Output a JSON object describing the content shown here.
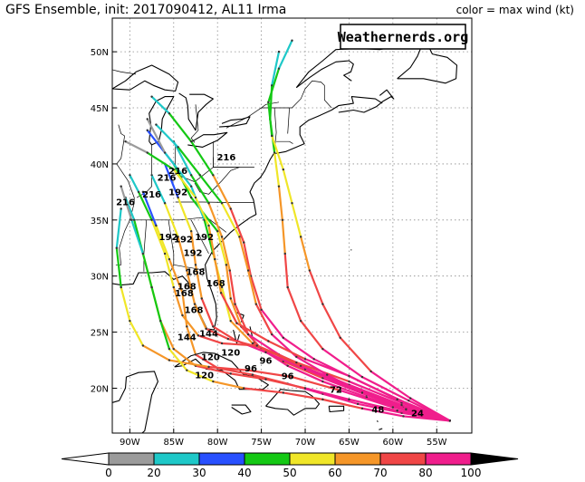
{
  "header": {
    "title": "GFS Ensemble, init: 2017090412, AL11 Irma",
    "legend_title": "color = max wind (kt)"
  },
  "watermark": "Weathernerds.org",
  "map": {
    "lon_range": [
      -92,
      -51
    ],
    "lat_range": [
      16,
      53
    ],
    "lon_ticks": [
      {
        "lon": -90,
        "label": "90W"
      },
      {
        "lon": -85,
        "label": "85W"
      },
      {
        "lon": -80,
        "label": "80W"
      },
      {
        "lon": -75,
        "label": "75W"
      },
      {
        "lon": -70,
        "label": "70W"
      },
      {
        "lon": -65,
        "label": "65W"
      },
      {
        "lon": -60,
        "label": "60W"
      },
      {
        "lon": -55,
        "label": "55W"
      }
    ],
    "lat_ticks": [
      {
        "lat": 20,
        "label": "20N"
      },
      {
        "lat": 25,
        "label": "25N"
      },
      {
        "lat": 30,
        "label": "30N"
      },
      {
        "lat": 35,
        "label": "35N"
      },
      {
        "lat": 40,
        "label": "40N"
      },
      {
        "lat": 45,
        "label": "45N"
      },
      {
        "lat": 50,
        "label": "50N"
      }
    ]
  },
  "colorbar": {
    "labels": [
      "0",
      "20",
      "30",
      "40",
      "50",
      "60",
      "70",
      "80",
      "100"
    ],
    "colors": [
      "#9b9b9b",
      "#1ec8c8",
      "#2850ff",
      "#14c814",
      "#f0e628",
      "#f59628",
      "#f04646",
      "#f01e8c"
    ]
  },
  "hour_labels": [
    {
      "text": "24",
      "lon": -57.2,
      "lat": 17.5
    },
    {
      "text": "48",
      "lon": -61.7,
      "lat": 17.8
    },
    {
      "text": "72",
      "lon": -66.5,
      "lat": 19.6
    },
    {
      "text": "96",
      "lon": -72.0,
      "lat": 20.8
    },
    {
      "text": "96",
      "lon": -74.5,
      "lat": 22.2
    },
    {
      "text": "96",
      "lon": -76.2,
      "lat": 21.5
    },
    {
      "text": "120",
      "lon": -81.5,
      "lat": 20.9
    },
    {
      "text": "120",
      "lon": -80.8,
      "lat": 22.5
    },
    {
      "text": "120",
      "lon": -78.5,
      "lat": 22.9
    },
    {
      "text": "144",
      "lon": -83.5,
      "lat": 24.3
    },
    {
      "text": "144",
      "lon": -81.0,
      "lat": 24.6
    },
    {
      "text": "168",
      "lon": -82.7,
      "lat": 26.7
    },
    {
      "text": "168",
      "lon": -83.8,
      "lat": 28.2
    },
    {
      "text": "168",
      "lon": -83.5,
      "lat": 28.8
    },
    {
      "text": "168",
      "lon": -80.2,
      "lat": 29.1
    },
    {
      "text": "168",
      "lon": -82.5,
      "lat": 30.1
    },
    {
      "text": "192",
      "lon": -85.6,
      "lat": 33.2
    },
    {
      "text": "192",
      "lon": -83.9,
      "lat": 33.0
    },
    {
      "text": "192",
      "lon": -82.8,
      "lat": 31.8
    },
    {
      "text": "192",
      "lon": -81.5,
      "lat": 33.2
    },
    {
      "text": "216",
      "lon": -90.5,
      "lat": 36.3
    },
    {
      "text": "216",
      "lon": -87.5,
      "lat": 37.0
    },
    {
      "text": "192",
      "lon": -84.5,
      "lat": 37.2
    },
    {
      "text": "216",
      "lon": -85.8,
      "lat": 38.5
    },
    {
      "text": "216",
      "lon": -84.5,
      "lat": 39.1
    },
    {
      "text": "216",
      "lon": -79.0,
      "lat": 40.3
    }
  ],
  "tracks": [
    {
      "colors": [
        "#f01e8c",
        "#f01e8c",
        "#f01e8c",
        "#f04646",
        "#f59628",
        "#f0e628",
        "#14c814",
        "#2850ff"
      ],
      "points": [
        [
          -53.5,
          17.1
        ],
        [
          -58,
          17.9
        ],
        [
          -63,
          19.2
        ],
        [
          -68,
          20.6
        ],
        [
          -72,
          22
        ],
        [
          -75,
          23.5
        ],
        [
          -77.3,
          25.5
        ],
        [
          -78.5,
          28
        ],
        [
          -79,
          31
        ],
        [
          -80,
          34
        ],
        [
          -83,
          37
        ],
        [
          -85,
          40
        ],
        [
          -88,
          43
        ]
      ]
    },
    {
      "colors": [
        "#f01e8c",
        "#f01e8c",
        "#f04646",
        "#f59628",
        "#f0e628",
        "#14c814",
        "#1ec8c8",
        "#9b9b9b"
      ],
      "points": [
        [
          -53.5,
          17.1
        ],
        [
          -58,
          18
        ],
        [
          -63,
          19.4
        ],
        [
          -68,
          20.9
        ],
        [
          -72.5,
          22.4
        ],
        [
          -76,
          24
        ],
        [
          -78.5,
          26
        ],
        [
          -79.5,
          29
        ],
        [
          -80.5,
          32
        ],
        [
          -81.5,
          35
        ],
        [
          -83,
          38
        ],
        [
          -86,
          41
        ],
        [
          -88,
          44
        ]
      ]
    },
    {
      "colors": [
        "#f01e8c",
        "#f01e8c",
        "#f01e8c",
        "#f04646",
        "#f04646",
        "#f59628",
        "#14c814",
        "#1ec8c8"
      ],
      "points": [
        [
          -53.5,
          17.1
        ],
        [
          -58.5,
          18.2
        ],
        [
          -64,
          19.8
        ],
        [
          -69,
          21.5
        ],
        [
          -73,
          23
        ],
        [
          -76.5,
          24.8
        ],
        [
          -78,
          27.5
        ],
        [
          -78.6,
          30.5
        ],
        [
          -79.5,
          33.5
        ],
        [
          -81,
          36.5
        ],
        [
          -83,
          39
        ],
        [
          -85,
          42
        ]
      ]
    },
    {
      "colors": [
        "#f01e8c",
        "#f01e8c",
        "#f01e8c",
        "#f04646",
        "#f04646",
        "#f59628",
        "#f0e628",
        "#2850ff"
      ],
      "points": [
        [
          -53.5,
          17.1
        ],
        [
          -58.8,
          18.4
        ],
        [
          -64.5,
          20
        ],
        [
          -70,
          21.7
        ],
        [
          -74.5,
          23.2
        ],
        [
          -78,
          24.3
        ],
        [
          -80.5,
          25.5
        ],
        [
          -81.8,
          28
        ],
        [
          -82.5,
          31
        ],
        [
          -83,
          34
        ],
        [
          -84.5,
          37
        ],
        [
          -86,
          40
        ]
      ]
    },
    {
      "colors": [
        "#f01e8c",
        "#f01e8c",
        "#f04646",
        "#f04646",
        "#f59628",
        "#f59628",
        "#f0e628",
        "#1ec8c8"
      ],
      "points": [
        [
          -53.5,
          17.1
        ],
        [
          -59,
          18.5
        ],
        [
          -65,
          20.3
        ],
        [
          -70.5,
          22
        ],
        [
          -75,
          23.6
        ],
        [
          -78.8,
          24.4
        ],
        [
          -81.3,
          25.3
        ],
        [
          -82.6,
          27.5
        ],
        [
          -83.5,
          30.5
        ],
        [
          -84.5,
          33.5
        ],
        [
          -86,
          36.5
        ],
        [
          -87.5,
          39
        ]
      ]
    },
    {
      "colors": [
        "#f01e8c",
        "#f04646",
        "#f04646",
        "#f04646",
        "#f59628",
        "#f59628",
        "#f0e628",
        "#14c814",
        "#1ec8c8"
      ],
      "points": [
        [
          -53.5,
          17.1
        ],
        [
          -59,
          18.7
        ],
        [
          -65,
          20.6
        ],
        [
          -71,
          22.3
        ],
        [
          -75.5,
          23.8
        ],
        [
          -79.5,
          24
        ],
        [
          -82.2,
          24.7
        ],
        [
          -84,
          26.5
        ],
        [
          -85,
          29
        ],
        [
          -86,
          32
        ],
        [
          -87.5,
          35
        ],
        [
          -89,
          37.5
        ],
        [
          -90,
          39
        ]
      ]
    },
    {
      "colors": [
        "#f01e8c",
        "#f01e8c",
        "#f01e8c",
        "#f04646",
        "#f04646",
        "#f59628",
        "#f59628",
        "#f0e628",
        "#2850ff"
      ],
      "points": [
        [
          -53.5,
          17.1
        ],
        [
          -59,
          17.8
        ],
        [
          -64,
          18.6
        ],
        [
          -68,
          19.5
        ],
        [
          -72,
          20.4
        ],
        [
          -76,
          21.2
        ],
        [
          -80,
          21.8
        ],
        [
          -82.5,
          23
        ],
        [
          -83.5,
          25.5
        ],
        [
          -84,
          28.5
        ],
        [
          -85.5,
          31.5
        ],
        [
          -87,
          34.5
        ],
        [
          -88.5,
          37.5
        ]
      ]
    },
    {
      "colors": [
        "#f01e8c",
        "#f01e8c",
        "#f04646",
        "#f04646",
        "#f59628",
        "#f59628",
        "#f0e628",
        "#14c814",
        "#1ec8c8"
      ],
      "points": [
        [
          -53.5,
          17.1
        ],
        [
          -59.5,
          18
        ],
        [
          -65,
          19
        ],
        [
          -70,
          20
        ],
        [
          -74.5,
          20.8
        ],
        [
          -78.5,
          21.3
        ],
        [
          -82.5,
          22
        ],
        [
          -85,
          23.5
        ],
        [
          -86.5,
          26
        ],
        [
          -87.5,
          29
        ],
        [
          -88.5,
          32
        ],
        [
          -89.5,
          35
        ],
        [
          -90.5,
          37
        ]
      ]
    },
    {
      "colors": [
        "#f01e8c",
        "#f04646",
        "#f04646",
        "#f59628",
        "#f59628",
        "#f0e628",
        "#14c814",
        "#1ec8c8"
      ],
      "points": [
        [
          -53.5,
          17.1
        ],
        [
          -60,
          18.3
        ],
        [
          -66,
          19.8
        ],
        [
          -71.5,
          21
        ],
        [
          -76.5,
          21.6
        ],
        [
          -81,
          21.9
        ],
        [
          -85.5,
          22.5
        ],
        [
          -88.5,
          23.8
        ],
        [
          -90,
          26
        ],
        [
          -91,
          29
        ],
        [
          -91.5,
          32.5
        ],
        [
          -91,
          36
        ]
      ]
    },
    {
      "colors": [
        "#f01e8c",
        "#f01e8c",
        "#f01e8c",
        "#f04646",
        "#f04646",
        "#f59628",
        "#14c814",
        "#1ec8c8"
      ],
      "points": [
        [
          -53.5,
          17.1
        ],
        [
          -58.5,
          18.7
        ],
        [
          -64,
          20.7
        ],
        [
          -69,
          22.6
        ],
        [
          -72.5,
          24.5
        ],
        [
          -75,
          27
        ],
        [
          -76.2,
          30
        ],
        [
          -77,
          33
        ],
        [
          -78.5,
          36
        ],
        [
          -80.5,
          39
        ],
        [
          -83,
          42
        ],
        [
          -85.5,
          44.5
        ],
        [
          -87.5,
          46
        ]
      ]
    },
    {
      "colors": [
        "#f01e8c",
        "#f01e8c",
        "#f04646",
        "#f04646",
        "#f59628",
        "#f0e628",
        "#14c814",
        "#1ec8c8"
      ],
      "points": [
        [
          -53.5,
          17.1
        ],
        [
          -58.2,
          18.9
        ],
        [
          -63.5,
          21
        ],
        [
          -68,
          23.5
        ],
        [
          -70.5,
          26
        ],
        [
          -72,
          29
        ],
        [
          -72.3,
          32
        ],
        [
          -72.6,
          35
        ],
        [
          -73,
          38
        ],
        [
          -73.5,
          41
        ],
        [
          -74,
          44
        ],
        [
          -73.8,
          47
        ],
        [
          -73,
          50
        ]
      ]
    },
    {
      "colors": [
        "#f01e8c",
        "#f04646",
        "#f04646",
        "#f59628",
        "#f0e628",
        "#f0e628",
        "#14c814",
        "#1ec8c8"
      ],
      "points": [
        [
          -53.5,
          17.1
        ],
        [
          -58,
          19.1
        ],
        [
          -62.5,
          21.5
        ],
        [
          -66,
          24.5
        ],
        [
          -68,
          27.5
        ],
        [
          -69.5,
          30.5
        ],
        [
          -70.5,
          33.5
        ],
        [
          -71.5,
          36.5
        ],
        [
          -72.5,
          39.5
        ],
        [
          -73.8,
          42.5
        ],
        [
          -74.2,
          45.5
        ],
        [
          -73,
          48.5
        ],
        [
          -71.5,
          51
        ]
      ]
    },
    {
      "colors": [
        "#f01e8c",
        "#f04646",
        "#f04646",
        "#f59628",
        "#f0e628",
        "#14c814",
        "#14c814",
        "#1ec8c8",
        "#9b9b9b"
      ],
      "points": [
        [
          -53.5,
          17.1
        ],
        [
          -58.8,
          17.5
        ],
        [
          -63.5,
          18.2
        ],
        [
          -68,
          19
        ],
        [
          -72.5,
          19.6
        ],
        [
          -77,
          20
        ],
        [
          -80.5,
          20.6
        ],
        [
          -83.5,
          21.6
        ],
        [
          -85.5,
          23.5
        ],
        [
          -86.5,
          26
        ],
        [
          -87.5,
          29
        ],
        [
          -88.5,
          32
        ],
        [
          -89.8,
          35
        ],
        [
          -91,
          38
        ]
      ]
    },
    {
      "colors": [
        "#f01e8c",
        "#f01e8c",
        "#f01e8c",
        "#f04646",
        "#f59628",
        "#f0e628",
        "#14c814",
        "#1ec8c8"
      ],
      "points": [
        [
          -53.5,
          17.1
        ],
        [
          -58.5,
          18.1
        ],
        [
          -63.5,
          19.6
        ],
        [
          -67.5,
          21.2
        ],
        [
          -71,
          22.8
        ],
        [
          -73.8,
          24.8
        ],
        [
          -75.6,
          27.5
        ],
        [
          -76.5,
          30.5
        ],
        [
          -77.5,
          33.5
        ],
        [
          -79.5,
          36.5
        ],
        [
          -82,
          39
        ],
        [
          -84.5,
          41.5
        ],
        [
          -87,
          43.5
        ]
      ]
    },
    {
      "colors": [
        "#f01e8c",
        "#f01e8c",
        "#f04646",
        "#f04646",
        "#f59628",
        "#f59628",
        "#f0e628",
        "#14c814",
        "#9b9b9b"
      ],
      "points": [
        [
          -53.5,
          17.1
        ],
        [
          -59.5,
          19
        ],
        [
          -65,
          21.1
        ],
        [
          -70,
          22.6
        ],
        [
          -74.2,
          24.2
        ],
        [
          -77.8,
          25.8
        ],
        [
          -79.6,
          28.5
        ],
        [
          -80.3,
          31.5
        ],
        [
          -81,
          34.5
        ],
        [
          -82.5,
          37
        ],
        [
          -85,
          39.5
        ],
        [
          -88,
          41
        ],
        [
          -90.5,
          42
        ]
      ]
    }
  ]
}
